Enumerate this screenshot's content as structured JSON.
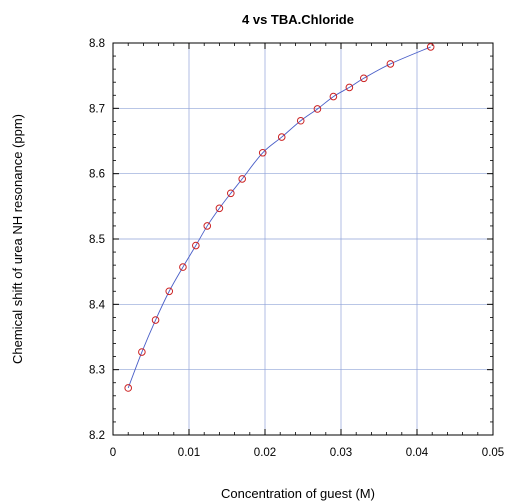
{
  "chart_data": {
    "type": "scatter",
    "title": "4 vs TBA.Chloride",
    "xlabel": "Concentration of guest (M)",
    "ylabel": "Chemical shift of urea NH resonance (ppm)",
    "xlim": [
      0,
      0.05
    ],
    "ylim": [
      8.2,
      8.8
    ],
    "x_ticks": [
      "0",
      "0.01",
      "0.02",
      "0.03",
      "0.04",
      "0.05"
    ],
    "y_ticks": [
      "8.2",
      "8.3",
      "8.4",
      "8.5",
      "8.6",
      "8.7",
      "8.8"
    ],
    "grid": true,
    "series": [
      {
        "points": [
          [
            0.002,
            8.272
          ],
          [
            0.0038,
            8.327
          ],
          [
            0.0056,
            8.376
          ],
          [
            0.0074,
            8.42
          ],
          [
            0.0092,
            8.457
          ],
          [
            0.0109,
            8.49
          ],
          [
            0.0124,
            8.52
          ],
          [
            0.014,
            8.547
          ],
          [
            0.0155,
            8.57
          ],
          [
            0.017,
            8.592
          ],
          [
            0.0197,
            8.632
          ],
          [
            0.0222,
            8.656
          ],
          [
            0.0247,
            8.681
          ],
          [
            0.0269,
            8.699
          ],
          [
            0.029,
            8.718
          ],
          [
            0.0311,
            8.732
          ],
          [
            0.033,
            8.746
          ],
          [
            0.0365,
            8.768
          ],
          [
            0.0418,
            8.794
          ]
        ],
        "marker_color": "#cc2222",
        "fit_color": "#4a5fc8"
      }
    ]
  }
}
